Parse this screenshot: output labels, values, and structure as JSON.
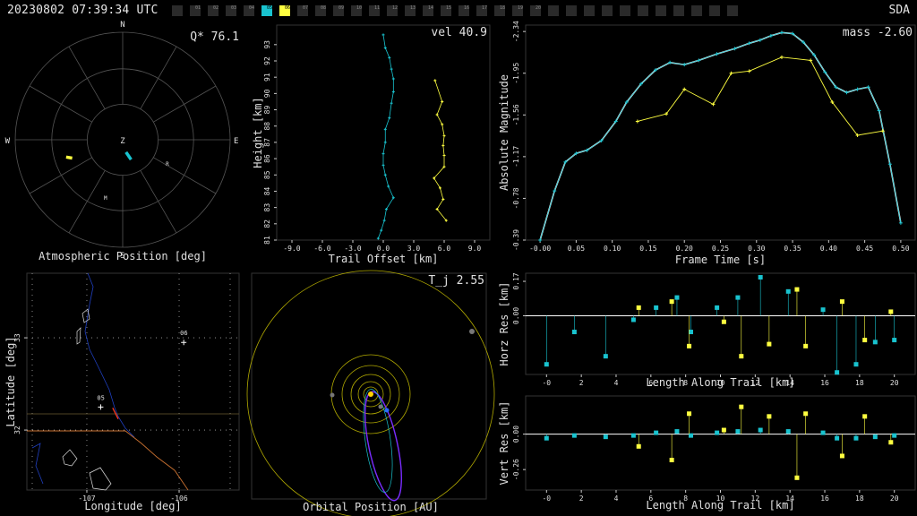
{
  "header": {
    "timestamp": "20230802 07:39:34 UTC",
    "site": "SDA",
    "cameras": [
      {
        "label": "",
        "state": "off"
      },
      {
        "label": "01",
        "state": "idle"
      },
      {
        "label": "02",
        "state": "idle"
      },
      {
        "label": "03",
        "state": "idle"
      },
      {
        "label": "04",
        "state": "idle"
      },
      {
        "label": "05",
        "state": "cyan"
      },
      {
        "label": "06",
        "state": "yellow"
      },
      {
        "label": "07",
        "state": "idle"
      },
      {
        "label": "08",
        "state": "idle"
      },
      {
        "label": "09",
        "state": "idle"
      },
      {
        "label": "10",
        "state": "idle"
      },
      {
        "label": "11",
        "state": "idle"
      },
      {
        "label": "12",
        "state": "idle"
      },
      {
        "label": "13",
        "state": "idle"
      },
      {
        "label": "14",
        "state": "idle"
      },
      {
        "label": "15",
        "state": "idle"
      },
      {
        "label": "16",
        "state": "idle"
      },
      {
        "label": "17",
        "state": "idle"
      },
      {
        "label": "18",
        "state": "idle"
      },
      {
        "label": "19",
        "state": "idle"
      },
      {
        "label": "20",
        "state": "idle"
      },
      {
        "label": "",
        "state": "off"
      },
      {
        "label": "",
        "state": "off"
      },
      {
        "label": "",
        "state": "off"
      },
      {
        "label": "",
        "state": "off"
      },
      {
        "label": "",
        "state": "off"
      },
      {
        "label": "",
        "state": "off"
      },
      {
        "label": "",
        "state": "off"
      },
      {
        "label": "",
        "state": "off"
      },
      {
        "label": "",
        "state": "off"
      },
      {
        "label": "",
        "state": "off"
      },
      {
        "label": "",
        "state": "off"
      }
    ]
  },
  "colors": {
    "cyan": "#19c3cf",
    "yellow": "#ffff40",
    "grid": "#555555",
    "axis": "#cccccc"
  },
  "chart_data": [
    {
      "type": "polar",
      "title": "Atmospheric Position [deg]",
      "annotation": "Q* 76.1",
      "compass": [
        "N",
        "E",
        "S",
        "W",
        "Z"
      ],
      "stations": [
        {
          "label": "M",
          "az": 196,
          "r": 0.58
        },
        {
          "label": "R",
          "az": 120,
          "r": 0.48
        }
      ],
      "tracks": [
        {
          "color": "cyan",
          "points": [
            [
              165,
              0.12
            ],
            [
              157,
              0.2
            ]
          ]
        },
        {
          "color": "yellow",
          "points": [
            [
              253,
              0.55
            ],
            [
              250,
              0.5
            ]
          ]
        }
      ]
    },
    {
      "type": "line",
      "annotation": "vel 40.9",
      "xlabel": "Trail Offset [km]",
      "ylabel": "Height [km]",
      "xlim": [
        -10.5,
        10.5
      ],
      "ylim": [
        81,
        94.2
      ],
      "xticks": [
        -9.0,
        -6.0,
        -3.0,
        0.0,
        3.0,
        6.0,
        9.0
      ],
      "xtick_labels": [
        "-9.0",
        "-6.0",
        "-3.0",
        "0.0",
        "3.0",
        "6.0",
        "9.0"
      ],
      "yticks": [
        81,
        82,
        83,
        84,
        85,
        86,
        87,
        88,
        89,
        90,
        91,
        92,
        93
      ],
      "ytick_labels": [
        "81",
        "82",
        "83",
        "84",
        "85",
        "86",
        "87",
        "88",
        "89",
        "90",
        "91",
        "92",
        "93"
      ],
      "series": [
        {
          "color": "cyan",
          "x": [
            0.0,
            0.2,
            0.6,
            0.8,
            1.0,
            1.0,
            0.8,
            0.6,
            0.2,
            0.2,
            0.0,
            0.0,
            0.2,
            0.5,
            1.0,
            0.3,
            0.1,
            -0.2,
            -0.5
          ],
          "y": [
            93.6,
            92.8,
            92.2,
            91.5,
            90.9,
            90.1,
            89.4,
            88.5,
            87.8,
            87.0,
            86.3,
            85.6,
            85.0,
            84.3,
            83.6,
            82.9,
            82.2,
            81.6,
            81.1
          ]
        },
        {
          "color": "yellow",
          "x": [
            5.1,
            5.8,
            5.3,
            5.8,
            6.0,
            5.9,
            6.0,
            6.0,
            5.0,
            5.6,
            5.9,
            5.3,
            6.2
          ],
          "y": [
            90.8,
            89.5,
            88.7,
            88.1,
            87.4,
            86.8,
            86.2,
            85.5,
            84.8,
            84.2,
            83.5,
            82.9,
            82.2
          ]
        }
      ]
    },
    {
      "type": "line",
      "annotation": "mass -2.60",
      "xlabel": "Frame Time [s]",
      "ylabel": "Absolute Magnitude",
      "xlim": [
        -0.02,
        0.52
      ],
      "ylim": [
        -0.39,
        -2.4
      ],
      "xticks": [
        0.0,
        0.05,
        0.1,
        0.15,
        0.2,
        0.25,
        0.3,
        0.35,
        0.4,
        0.45,
        0.5
      ],
      "xtick_labels": [
        "-0.00",
        "0.05",
        "0.10",
        "0.15",
        "0.20",
        "0.25",
        "0.30",
        "0.35",
        "0.40",
        "0.45",
        "0.50"
      ],
      "yticks": [
        -0.39,
        -0.78,
        -1.17,
        -1.56,
        -1.95,
        -2.34
      ],
      "ytick_labels": [
        "-0.39",
        "-0.78",
        "-1.17",
        "-1.56",
        "-1.95",
        "-2.34"
      ],
      "series": [
        {
          "color": "cyan",
          "line": "#ffffff",
          "x": [
            0.0,
            0.02,
            0.035,
            0.05,
            0.065,
            0.085,
            0.105,
            0.12,
            0.14,
            0.16,
            0.18,
            0.2,
            0.22,
            0.245,
            0.27,
            0.29,
            0.305,
            0.32,
            0.335,
            0.35,
            0.365,
            0.38,
            0.395,
            0.41,
            0.425,
            0.44,
            0.455,
            0.47,
            0.485,
            0.5
          ],
          "y": [
            -0.39,
            -0.85,
            -1.12,
            -1.2,
            -1.23,
            -1.32,
            -1.5,
            -1.68,
            -1.85,
            -1.98,
            -2.05,
            -2.03,
            -2.07,
            -2.13,
            -2.18,
            -2.23,
            -2.26,
            -2.3,
            -2.33,
            -2.32,
            -2.24,
            -2.12,
            -1.96,
            -1.82,
            -1.77,
            -1.8,
            -1.82,
            -1.6,
            -1.1,
            -0.55
          ]
        },
        {
          "color": "yellow",
          "x": [
            0.135,
            0.175,
            0.2,
            0.24,
            0.265,
            0.29,
            0.335,
            0.375,
            0.405,
            0.44,
            0.475
          ],
          "y": [
            -1.5,
            -1.57,
            -1.8,
            -1.66,
            -1.95,
            -1.97,
            -2.1,
            -2.07,
            -1.68,
            -1.37,
            -1.41
          ]
        }
      ]
    },
    {
      "type": "map",
      "xlabel": "Longitude [deg]",
      "ylabel": "Latitude [deg]",
      "xlim": [
        -107.65,
        -105.35
      ],
      "ylim": [
        31.35,
        33.7
      ],
      "xticks": [
        -107,
        -106
      ],
      "xtick_labels": [
        "-107",
        "-106"
      ],
      "yticks": [
        32,
        33
      ],
      "ytick_labels": [
        "32",
        "33"
      ],
      "stations": [
        {
          "label": "05",
          "lon": -106.85,
          "lat": 32.25
        },
        {
          "label": "06",
          "lon": -105.95,
          "lat": 32.95
        }
      ],
      "track": {
        "color": "#ff3b1f",
        "lon": [
          -106.72,
          -106.66
        ],
        "lat": [
          32.24,
          32.12
        ]
      }
    },
    {
      "type": "orbit",
      "title": "Orbital Position [AU]",
      "annotation": "T_j 2.55"
    },
    {
      "type": "scatter",
      "xlabel": "Length Along Trail [km]",
      "ylabel": "Horz Res [km]",
      "xlim": [
        -1.2,
        21.2
      ],
      "ylim": [
        -0.29,
        0.21
      ],
      "xticks": [
        0,
        2,
        4,
        6,
        8,
        10,
        12,
        14,
        16,
        18,
        20
      ],
      "xtick_labels": [
        "-0",
        "2",
        "4",
        "6",
        "8",
        "10",
        "12",
        "14",
        "16",
        "18",
        "20"
      ],
      "yticks": [
        0.0,
        0.17
      ],
      "ytick_labels": [
        "0.00",
        "0.17"
      ],
      "series": [
        {
          "color": "cyan",
          "x": [
            0.0,
            1.6,
            3.4,
            5.0,
            6.3,
            7.5,
            8.3,
            9.8,
            11.0,
            12.3,
            13.9,
            15.9,
            16.7,
            17.8,
            18.9,
            20.0
          ],
          "y": [
            -0.24,
            -0.08,
            -0.2,
            -0.02,
            0.04,
            0.09,
            -0.08,
            0.04,
            0.09,
            0.19,
            0.12,
            0.03,
            -0.28,
            -0.24,
            -0.13,
            -0.12
          ]
        },
        {
          "color": "yellow",
          "x": [
            5.3,
            7.2,
            8.2,
            10.2,
            11.2,
            12.8,
            14.4,
            14.9,
            17.0,
            18.3,
            19.8
          ],
          "y": [
            0.04,
            0.07,
            -0.15,
            -0.03,
            -0.2,
            -0.14,
            0.13,
            -0.15,
            0.07,
            -0.12,
            0.02
          ]
        }
      ]
    },
    {
      "type": "scatter",
      "xlabel": "Length Along Trail [km]",
      "ylabel": "Vert Res [km]",
      "xlim": [
        -1.2,
        21.2
      ],
      "ylim": [
        -0.41,
        0.28
      ],
      "xticks": [
        0,
        2,
        4,
        6,
        8,
        10,
        12,
        14,
        16,
        18,
        20
      ],
      "xtick_labels": [
        "-0",
        "2",
        "4",
        "6",
        "8",
        "10",
        "12",
        "14",
        "16",
        "18",
        "20"
      ],
      "yticks": [
        0.0,
        -0.26
      ],
      "ytick_labels": [
        "0.00",
        "-0.26"
      ],
      "series": [
        {
          "color": "cyan",
          "x": [
            0.0,
            1.6,
            3.4,
            5.0,
            6.3,
            7.5,
            8.3,
            9.8,
            11.0,
            12.3,
            13.9,
            15.9,
            16.7,
            17.8,
            18.9,
            20.0
          ],
          "y": [
            -0.03,
            -0.01,
            -0.02,
            -0.01,
            0.01,
            0.02,
            -0.01,
            0.01,
            0.02,
            0.03,
            0.02,
            0.01,
            -0.03,
            -0.03,
            -0.02,
            -0.01
          ]
        },
        {
          "color": "yellow",
          "x": [
            5.3,
            7.2,
            8.2,
            10.2,
            11.2,
            12.8,
            14.4,
            14.9,
            17.0,
            18.3,
            19.8
          ],
          "y": [
            -0.09,
            -0.19,
            0.15,
            0.03,
            0.2,
            0.13,
            -0.32,
            0.15,
            -0.16,
            0.13,
            -0.06
          ]
        }
      ]
    }
  ]
}
